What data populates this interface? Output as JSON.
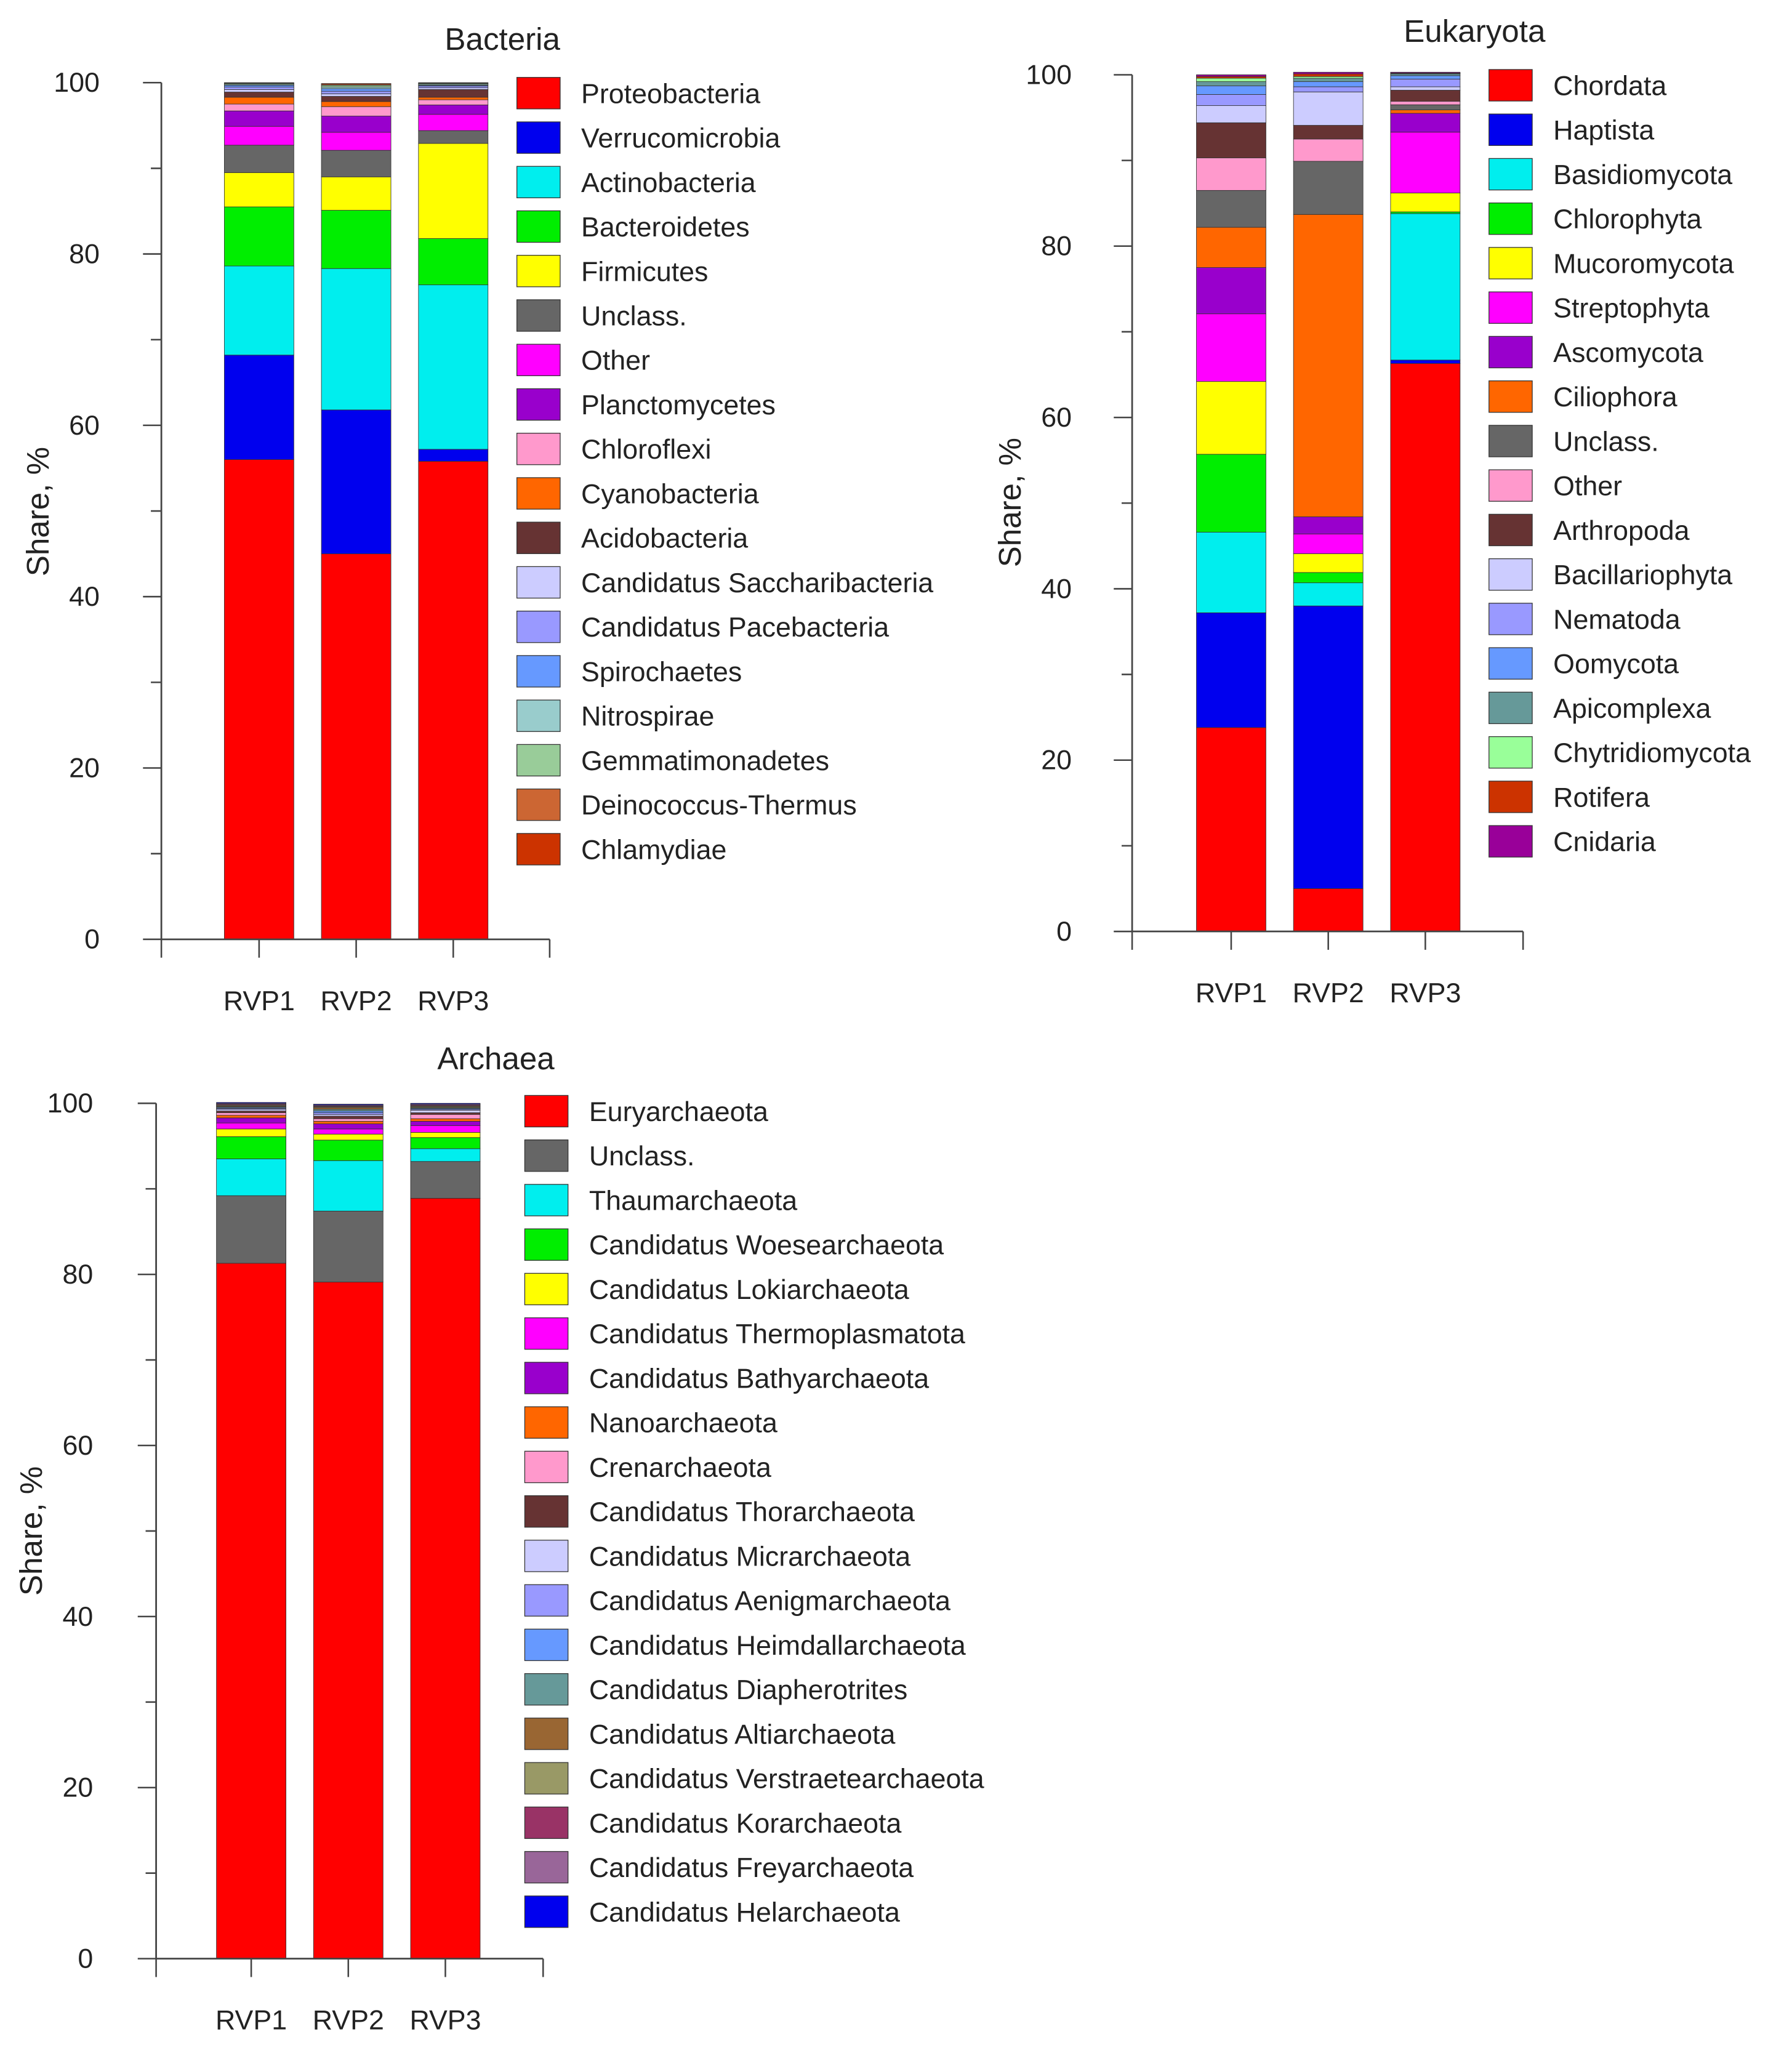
{
  "chart_data": [
    {
      "type": "bar",
      "stacked": true,
      "title": "Bacteria",
      "xlabel": "",
      "ylabel": "Share, %",
      "ylim": [
        0,
        100
      ],
      "yticks": [
        0,
        20,
        40,
        60,
        80,
        100
      ],
      "categories": [
        "RVP1",
        "RVP2",
        "RVP3"
      ],
      "series": [
        {
          "name": "Proteobacteria",
          "color": "#ff0000",
          "values": [
            56.0,
            45.0,
            55.8
          ]
        },
        {
          "name": "Verrucomicrobia",
          "color": "#0000ee",
          "values": [
            12.2,
            16.8,
            1.4
          ]
        },
        {
          "name": "Actinobacteria",
          "color": "#00eeee",
          "values": [
            10.4,
            16.5,
            19.2
          ]
        },
        {
          "name": "Bacteroidetes",
          "color": "#00ee00",
          "values": [
            6.9,
            6.8,
            5.4
          ]
        },
        {
          "name": "Firmicutes",
          "color": "#ffff00",
          "values": [
            4.0,
            3.9,
            11.1
          ]
        },
        {
          "name": "Unclass.",
          "color": "#666666",
          "values": [
            3.2,
            3.1,
            1.5
          ]
        },
        {
          "name": "Other",
          "color": "#ff00ff",
          "values": [
            2.2,
            2.1,
            1.9
          ]
        },
        {
          "name": "Planctomycetes",
          "color": "#9900cc",
          "values": [
            1.8,
            1.9,
            1.1
          ]
        },
        {
          "name": "Chloroflexi",
          "color": "#ff99cc",
          "values": [
            0.8,
            1.1,
            0.6
          ]
        },
        {
          "name": "Cyanobacteria",
          "color": "#ff6600",
          "values": [
            0.8,
            0.6,
            0.3
          ]
        },
        {
          "name": "Acidobacteria",
          "color": "#663333",
          "values": [
            0.6,
            0.6,
            0.9
          ]
        },
        {
          "name": "Candidatus Saccharibacteria",
          "color": "#ccccff",
          "values": [
            0.3,
            0.3,
            0.2
          ]
        },
        {
          "name": "Candidatus Pacebacteria",
          "color": "#9999ff",
          "values": [
            0.3,
            0.3,
            0.2
          ]
        },
        {
          "name": "Spirochaetes",
          "color": "#6699ff",
          "values": [
            0.2,
            0.3,
            0.1
          ]
        },
        {
          "name": "Nitrospirae",
          "color": "#99cccc",
          "values": [
            0.1,
            0.2,
            0.1
          ]
        },
        {
          "name": "Gemmatimonadetes",
          "color": "#99cc99",
          "values": [
            0.1,
            0.2,
            0.1
          ]
        },
        {
          "name": "Deinococcus-Thermus",
          "color": "#cc6633",
          "values": [
            0.05,
            0.1,
            0.05
          ]
        },
        {
          "name": "Chlamydiae",
          "color": "#cc3300",
          "values": [
            0.05,
            0.1,
            0.05
          ]
        }
      ]
    },
    {
      "type": "bar",
      "stacked": true,
      "title": "Eukaryota",
      "xlabel": "",
      "ylabel": "Share, %",
      "ylim": [
        0,
        100
      ],
      "yticks": [
        0,
        20,
        40,
        60,
        80,
        100
      ],
      "categories": [
        "RVP1",
        "RVP2",
        "RVP3"
      ],
      "series": [
        {
          "name": "Chordata",
          "color": "#ff0000",
          "values": [
            23.8,
            5.0,
            66.3
          ]
        },
        {
          "name": "Haptista",
          "color": "#0000ee",
          "values": [
            13.4,
            33.0,
            0.4
          ]
        },
        {
          "name": "Basidiomycota",
          "color": "#00eeee",
          "values": [
            9.4,
            2.7,
            17.1
          ]
        },
        {
          "name": "Chlorophyta",
          "color": "#00ee00",
          "values": [
            9.1,
            1.2,
            0.2
          ]
        },
        {
          "name": "Mucoromycota",
          "color": "#ffff00",
          "values": [
            8.5,
            2.2,
            2.2
          ]
        },
        {
          "name": "Streptophyta",
          "color": "#ff00ff",
          "values": [
            7.9,
            2.3,
            7.1
          ]
        },
        {
          "name": "Ascomycota",
          "color": "#9900cc",
          "values": [
            5.4,
            2.0,
            2.2
          ]
        },
        {
          "name": "Ciliophora",
          "color": "#ff6600",
          "values": [
            4.7,
            35.3,
            0.4
          ]
        },
        {
          "name": "Unclass.",
          "color": "#666666",
          "values": [
            4.3,
            6.2,
            0.6
          ]
        },
        {
          "name": "Other",
          "color": "#ff99cc",
          "values": [
            3.8,
            2.6,
            0.4
          ]
        },
        {
          "name": "Arthropoda",
          "color": "#663333",
          "values": [
            4.1,
            1.6,
            1.3
          ]
        },
        {
          "name": "Bacillariophyta",
          "color": "#ccccff",
          "values": [
            2.0,
            3.9,
            0.4
          ]
        },
        {
          "name": "Nematoda",
          "color": "#9999ff",
          "values": [
            1.3,
            0.6,
            0.9
          ]
        },
        {
          "name": "Oomycota",
          "color": "#6699ff",
          "values": [
            1.0,
            0.6,
            0.4
          ]
        },
        {
          "name": "Apicomplexa",
          "color": "#669999",
          "values": [
            0.5,
            0.4,
            0.2
          ]
        },
        {
          "name": "Chytridiomycota",
          "color": "#99ff99",
          "values": [
            0.4,
            0.2,
            0.05
          ]
        },
        {
          "name": "Rotifera",
          "color": "#cc3300",
          "values": [
            0.2,
            0.3,
            0.05
          ]
        },
        {
          "name": "Cnidaria",
          "color": "#990099",
          "values": [
            0.2,
            0.2,
            0.1
          ]
        }
      ]
    },
    {
      "type": "bar",
      "stacked": true,
      "title": "Archaea",
      "xlabel": "",
      "ylabel": "Share, %",
      "ylim": [
        0,
        100
      ],
      "yticks": [
        0,
        20,
        40,
        60,
        80,
        100
      ],
      "categories": [
        "RVP1",
        "RVP2",
        "RVP3"
      ],
      "series": [
        {
          "name": "Euryarchaeota",
          "color": "#ff0000",
          "values": [
            81.3,
            79.1,
            88.9
          ]
        },
        {
          "name": "Unclass.",
          "color": "#666666",
          "values": [
            7.9,
            8.3,
            4.3
          ]
        },
        {
          "name": "Thaumarchaeota",
          "color": "#00eeee",
          "values": [
            4.3,
            5.9,
            1.5
          ]
        },
        {
          "name": "Candidatus Woesearchaeota",
          "color": "#00ee00",
          "values": [
            2.6,
            2.4,
            1.3
          ]
        },
        {
          "name": "Candidatus Lokiarchaeota",
          "color": "#ffff00",
          "values": [
            0.9,
            0.7,
            0.6
          ]
        },
        {
          "name": "Candidatus Thermoplasmatota",
          "color": "#ff00ff",
          "values": [
            0.7,
            0.6,
            0.8
          ]
        },
        {
          "name": "Candidatus Bathyarchaeota",
          "color": "#9900cc",
          "values": [
            0.6,
            0.6,
            0.5
          ]
        },
        {
          "name": "Nanoarchaeota",
          "color": "#ff6600",
          "values": [
            0.3,
            0.3,
            0.3
          ]
        },
        {
          "name": "Crenarchaeota",
          "color": "#ff99cc",
          "values": [
            0.3,
            0.3,
            0.5
          ]
        },
        {
          "name": "Candidatus Thorarchaeota",
          "color": "#663333",
          "values": [
            0.2,
            0.3,
            0.2
          ]
        },
        {
          "name": "Candidatus Micrarchaeota",
          "color": "#ccccff",
          "values": [
            0.2,
            0.2,
            0.3
          ]
        },
        {
          "name": "Candidatus Aenigmarchaeota",
          "color": "#9999ff",
          "values": [
            0.1,
            0.2,
            0.1
          ]
        },
        {
          "name": "Candidatus Heimdallarchaeota",
          "color": "#6699ff",
          "values": [
            0.1,
            0.2,
            0.1
          ]
        },
        {
          "name": "Candidatus Diapherotrites",
          "color": "#669999",
          "values": [
            0.1,
            0.2,
            0.1
          ]
        },
        {
          "name": "Candidatus Altiarchaeota",
          "color": "#996633",
          "values": [
            0.1,
            0.2,
            0.1
          ]
        },
        {
          "name": "Candidatus Verstraetearchaeota",
          "color": "#999966",
          "values": [
            0.1,
            0.1,
            0.1
          ]
        },
        {
          "name": "Candidatus Korarchaeota",
          "color": "#993366",
          "values": [
            0.1,
            0.1,
            0.1
          ]
        },
        {
          "name": "Candidatus Freyarchaeota",
          "color": "#996699",
          "values": [
            0.1,
            0.1,
            0.1
          ]
        },
        {
          "name": "Candidatus Helarchaeota",
          "color": "#0000ee",
          "values": [
            0.1,
            0.1,
            0.1
          ]
        }
      ]
    }
  ]
}
